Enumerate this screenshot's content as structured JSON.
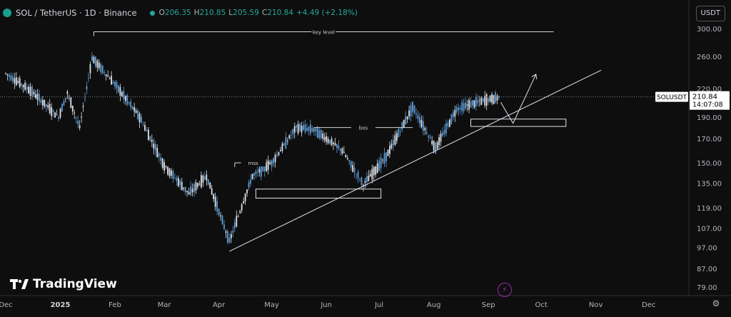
{
  "header": {
    "symbol": "SOL / TetherUS · 1D · Binance",
    "open_label": "O",
    "open": "206.35",
    "high_label": "H",
    "high": "210.85",
    "low_label": "L",
    "low": "205.59",
    "close_label": "C",
    "close": "210.84",
    "change": "+4.49 (+2.18%)"
  },
  "currency_button": "USDT",
  "logo_text": "TradingView",
  "icons": {
    "settings": "gear-icon",
    "alert": "lightning-icon"
  },
  "colors": {
    "background": "#0e0e0e",
    "up": "#26a69a",
    "candle_up": "#5b9bd5",
    "candle_down": "#e0e3eb",
    "text": "#d1d4dc"
  },
  "chart_data": {
    "type": "candlestick",
    "y_scale": "log",
    "ylim": [
      75,
      320
    ],
    "y_ticks": [
      300.0,
      260.0,
      220.0,
      190.0,
      170.0,
      150.0,
      135.0,
      119.0,
      107.0,
      97.0,
      87.0,
      79.0
    ],
    "y_tick_labels": [
      "300.00",
      "260.00",
      "220.00",
      "190.00",
      "170.00",
      "150.00",
      "135.00",
      "119.00",
      "107.00",
      "97.00",
      "87.00",
      "79.00"
    ],
    "x_ticks": [
      "Dec",
      "2025",
      "Feb",
      "Mar",
      "Apr",
      "May",
      "Jun",
      "Jul",
      "Aug",
      "Sep",
      "Oct",
      "Nov",
      "Dec"
    ],
    "x_tick_dates": [
      "2024-12-01",
      "2025-01-01",
      "2025-02-01",
      "2025-03-01",
      "2025-04-01",
      "2025-05-01",
      "2025-06-01",
      "2025-07-01",
      "2025-08-01",
      "2025-09-01",
      "2025-10-01",
      "2025-11-01",
      "2025-12-01"
    ],
    "price_label": {
      "symbol": "SOLUSDT",
      "price": "210.84",
      "countdown": "14:07:08",
      "value": 210.84
    },
    "approx_close_path": [
      {
        "date": "2024-12-01",
        "close": 238
      },
      {
        "date": "2024-12-15",
        "close": 218
      },
      {
        "date": "2024-12-31",
        "close": 190
      },
      {
        "date": "2025-01-05",
        "close": 215
      },
      {
        "date": "2025-01-12",
        "close": 180
      },
      {
        "date": "2025-01-19",
        "close": 258
      },
      {
        "date": "2025-02-01",
        "close": 225
      },
      {
        "date": "2025-02-15",
        "close": 190
      },
      {
        "date": "2025-03-01",
        "close": 148
      },
      {
        "date": "2025-03-15",
        "close": 128
      },
      {
        "date": "2025-03-25",
        "close": 140
      },
      {
        "date": "2025-04-07",
        "close": 100
      },
      {
        "date": "2025-04-20",
        "close": 140
      },
      {
        "date": "2025-05-01",
        "close": 150
      },
      {
        "date": "2025-05-15",
        "close": 180
      },
      {
        "date": "2025-05-25",
        "close": 178
      },
      {
        "date": "2025-06-10",
        "close": 160
      },
      {
        "date": "2025-06-22",
        "close": 134
      },
      {
        "date": "2025-07-05",
        "close": 155
      },
      {
        "date": "2025-07-20",
        "close": 200
      },
      {
        "date": "2025-08-02",
        "close": 162
      },
      {
        "date": "2025-08-14",
        "close": 198
      },
      {
        "date": "2025-08-25",
        "close": 205
      },
      {
        "date": "2025-09-08",
        "close": 210.84
      }
    ],
    "annotations": [
      {
        "label": "key level",
        "price": 295,
        "from": "2025-01-20",
        "to": "2025-10-08"
      },
      {
        "label": "bos",
        "price": 180,
        "from": "2025-05-25",
        "to": "2025-07-20"
      },
      {
        "label": "mss",
        "price": 150,
        "from": "2025-04-10",
        "to": "2025-05-01"
      }
    ],
    "zones": [
      {
        "from": "2025-04-22",
        "to": "2025-07-02",
        "top": 131,
        "bottom": 125
      },
      {
        "from": "2025-08-22",
        "to": "2025-10-15",
        "top": 188,
        "bottom": 181
      }
    ],
    "trendline": {
      "from": {
        "date": "2025-04-07",
        "price": 95
      },
      "to": {
        "date": "2025-11-04",
        "price": 242
      }
    },
    "projection": [
      {
        "date": "2025-09-08",
        "price": 205
      },
      {
        "date": "2025-09-15",
        "price": 184
      },
      {
        "date": "2025-09-28",
        "price": 237
      }
    ]
  }
}
